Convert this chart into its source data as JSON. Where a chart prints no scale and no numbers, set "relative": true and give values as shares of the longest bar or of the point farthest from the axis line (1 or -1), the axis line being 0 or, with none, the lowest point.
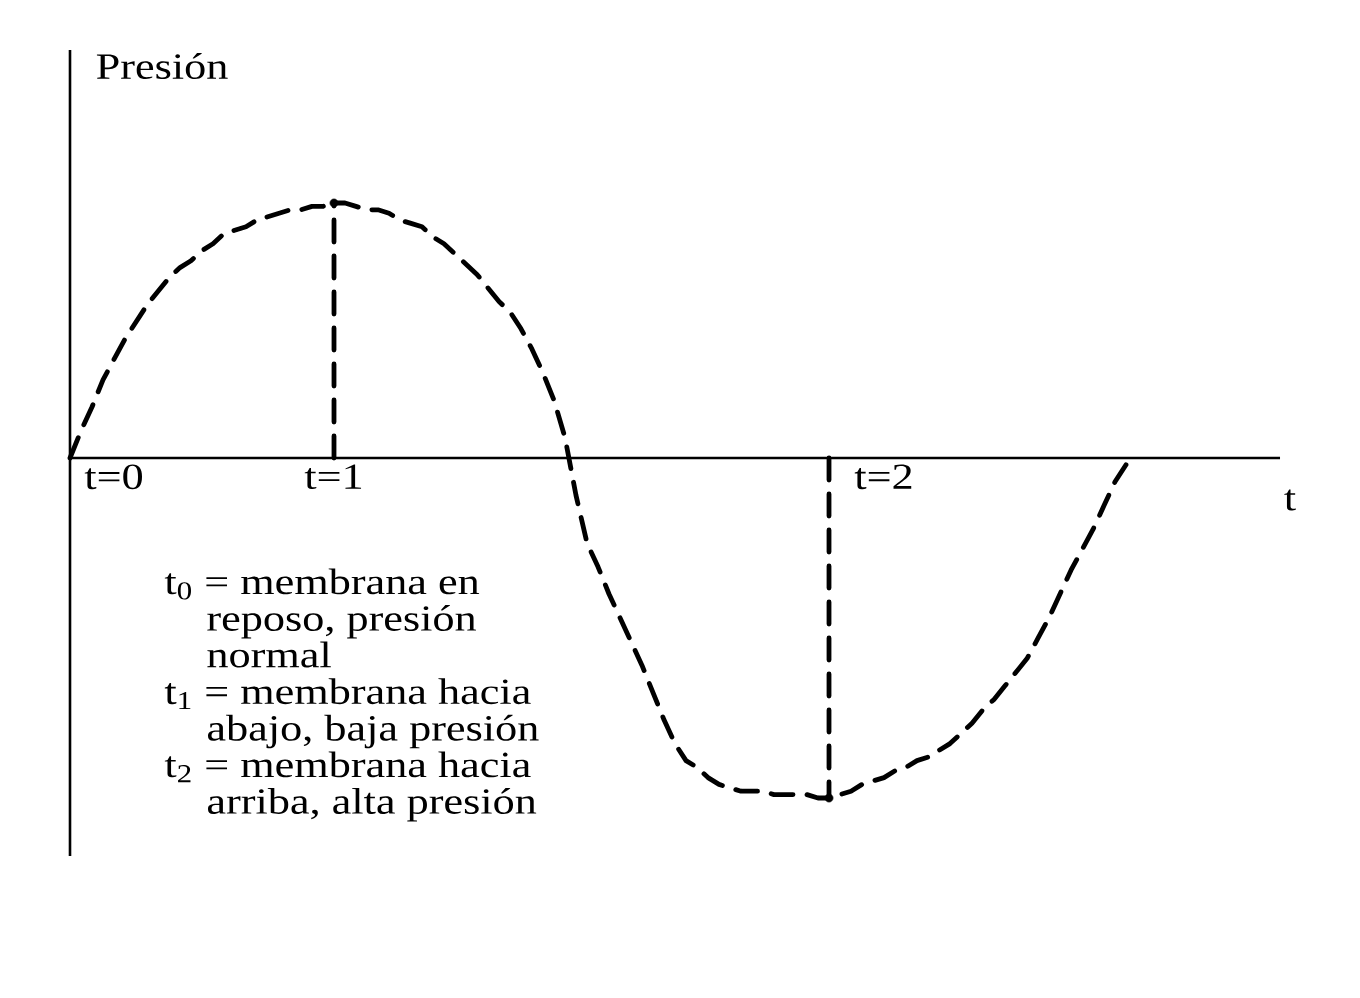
{
  "chart_data": {
    "type": "line",
    "relative": true,
    "ylabel": "Presión",
    "xlabel": "t",
    "categories": [
      null,
      null,
      null,
      null,
      "t=0",
      null,
      null,
      null,
      null,
      null,
      null,
      null,
      null,
      null,
      null,
      null,
      null,
      null,
      null,
      null,
      null,
      null,
      null,
      null,
      "t=1",
      null,
      null,
      null,
      null,
      null,
      null,
      null,
      null,
      null,
      null,
      null,
      null,
      null,
      null,
      null,
      null,
      null,
      null,
      null,
      null,
      null,
      null,
      null,
      null,
      null,
      null,
      null,
      null,
      null,
      null,
      null,
      null,
      null,
      null,
      null,
      null,
      null,
      null,
      null,
      null,
      null,
      null,
      null,
      null,
      null,
      null,
      null,
      null,
      null,
      "t=2",
      null,
      null,
      null,
      null,
      null,
      null,
      null,
      null,
      null,
      null,
      null,
      null,
      null,
      null,
      null,
      null,
      null,
      null,
      null,
      null,
      null,
      null
    ],
    "line_style": "dashed",
    "series": [
      {
        "color": "#000000",
        "values": [
          0,
          0.08,
          0.15,
          0.23,
          0.29,
          0.35,
          0.4,
          0.45,
          0.49,
          0.53,
          0.56,
          0.58,
          0.61,
          0.63,
          0.66,
          0.67,
          0.68,
          0.7,
          0.71,
          0.72,
          0.73,
          0.73,
          0.74,
          0.74,
          0.75,
          0.75,
          0.74,
          0.73,
          0.73,
          0.72,
          0.7,
          0.69,
          0.68,
          0.65,
          0.63,
          0.6,
          0.57,
          0.54,
          0.5,
          0.46,
          0.43,
          0.38,
          0.32,
          0.25,
          0.17,
          0.06,
          -0.11,
          -0.25,
          -0.32,
          -0.4,
          -0.47,
          -0.54,
          -0.61,
          -0.69,
          -0.77,
          -0.84,
          -0.89,
          -0.91,
          -0.94,
          -0.96,
          -0.97,
          -0.98,
          -0.98,
          -0.98,
          -0.99,
          -0.99,
          -0.99,
          -0.99,
          -1,
          -1,
          -0.99,
          -0.98,
          -0.96,
          -0.95,
          -0.94,
          -0.92,
          -0.91,
          -0.89,
          -0.88,
          -0.86,
          -0.84,
          -0.81,
          -0.78,
          -0.74,
          -0.71,
          -0.67,
          -0.63,
          -0.59,
          -0.53,
          -0.47,
          -0.4,
          -0.33,
          -0.27,
          -0.21,
          -0.14,
          -0.07,
          -0.02
        ]
      },
      {
        "type": "lollipop",
        "color": "#000000",
        "marker": "circle",
        "values": [
          null,
          null,
          null,
          null,
          null,
          null,
          null,
          null,
          null,
          null,
          null,
          null,
          null,
          null,
          null,
          null,
          null,
          null,
          null,
          null,
          null,
          null,
          null,
          null,
          0.75,
          null,
          null,
          null,
          null,
          null,
          null,
          null,
          null,
          null,
          null,
          null,
          null,
          null,
          null,
          null,
          null,
          null,
          null,
          null,
          null,
          null,
          null,
          null,
          null,
          null,
          null,
          null,
          null,
          null,
          null,
          null,
          null,
          null,
          null,
          null,
          null,
          null,
          null,
          null,
          null,
          null,
          null,
          null,
          null,
          -1,
          null,
          null,
          null,
          null,
          null,
          null,
          null,
          null,
          null,
          null,
          null,
          null,
          null,
          null,
          null,
          null,
          null,
          null,
          null,
          null,
          null,
          null,
          null,
          null,
          null,
          null,
          null
        ]
      }
    ],
    "annotations": [
      "t$_{0}$ = membrana en reposo, presión normal",
      "t$_{1}$ = membrana hacia abajo, baja presión",
      "t$_{2}$ = membrana hacia arriba, alta presión"
    ]
  }
}
